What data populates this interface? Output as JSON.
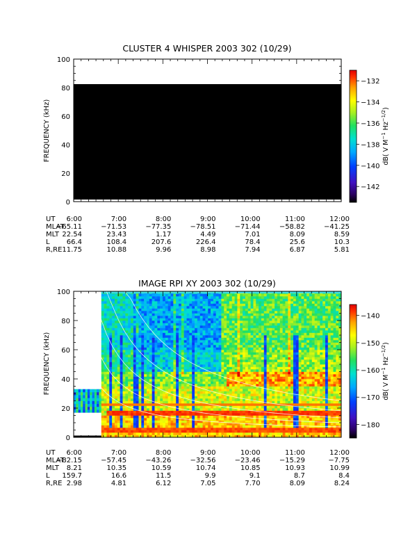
{
  "chart_data": [
    {
      "type": "heatmap",
      "title": "CLUSTER 4 WHISPER 2003 302 (10/29)",
      "ylabel": "FREQUENCY (kHz)",
      "ylim": [
        0,
        100
      ],
      "yticks": [
        0,
        20,
        40,
        60,
        80,
        100
      ],
      "xlim_hours": [
        6,
        12
      ],
      "xticks": [
        "6:00",
        "7:00",
        "8:00",
        "9:00",
        "10:00",
        "11:00",
        "12:00"
      ],
      "data_region": {
        "freq_min": 0,
        "freq_max": 80,
        "fill": "no data (black)"
      },
      "colorbar": {
        "label_main": "dB( V M",
        "label_sup1": "−1",
        "label_mid": " Hz",
        "label_sup2": "−1/2",
        "label_end": ")",
        "range": [
          -143.5,
          -131
        ],
        "ticks": [
          "−132",
          "−134",
          "−136",
          "−138",
          "−140",
          "−142"
        ],
        "tick_values": [
          -132,
          -134,
          -136,
          -138,
          -140,
          -142
        ]
      },
      "ephemeris": [
        {
          "label": "UT",
          "values": [
            "6:00",
            "7:00",
            "8:00",
            "9:00",
            "10:00",
            "11:00",
            "12:00"
          ]
        },
        {
          "label": "MLAT",
          "values": [
            "−65.11",
            "−71.53",
            "−77.35",
            "−78.51",
            "−71.44",
            "−58.82",
            "−41.25"
          ]
        },
        {
          "label": "MLT",
          "values": [
            "22.54",
            "23.43",
            "1.17",
            "4.49",
            "7.01",
            "8.09",
            "8.59"
          ]
        },
        {
          "label": "L",
          "values": [
            "66.4",
            "108.4",
            "207.6",
            "226.4",
            "78.4",
            "25.6",
            "10.3"
          ]
        },
        {
          "label": "R,RE",
          "values": [
            "11.75",
            "10.88",
            "9.96",
            "8.98",
            "7.94",
            "6.87",
            "5.81"
          ]
        }
      ]
    },
    {
      "type": "heatmap",
      "title": "IMAGE RPI XY 2003 302 (10/29)",
      "ylabel": "FREQUENCY (kHz)",
      "ylim": [
        0,
        100
      ],
      "yticks": [
        0,
        20,
        40,
        60,
        80,
        100
      ],
      "xlim_hours": [
        6,
        12
      ],
      "xticks": [
        "6:00",
        "7:00",
        "8:00",
        "9:00",
        "10:00",
        "11:00",
        "12:00"
      ],
      "data_start_hour": 6.62,
      "early_band": {
        "hour_start": 6.0,
        "hour_end": 6.62,
        "freq_min": 17,
        "freq_max": 33
      },
      "colorbar": {
        "label_main": "dB( V M",
        "label_sup1": "−1",
        "label_mid": " Hz",
        "label_sup2": "−1/2",
        "label_end": ")",
        "range": [
          -185,
          -136
        ],
        "ticks": [
          "−140",
          "−150",
          "−160",
          "−170",
          "−180"
        ],
        "tick_values": [
          -140,
          -150,
          -160,
          -170,
          -180
        ]
      },
      "ephemeris": [
        {
          "label": "UT",
          "values": [
            "6:00",
            "7:00",
            "8:00",
            "9:00",
            "10:00",
            "11:00",
            "12:00"
          ]
        },
        {
          "label": "MLAT",
          "values": [
            "−82.15",
            "−57.45",
            "−43.26",
            "−32.56",
            "−23.46",
            "−15.29",
            "−7.75"
          ]
        },
        {
          "label": "MLT",
          "values": [
            "8.21",
            "10.35",
            "10.59",
            "10.74",
            "10.85",
            "10.93",
            "10.99"
          ]
        },
        {
          "label": "L",
          "values": [
            "159.7",
            "16.6",
            "11.5",
            "9.9",
            "9.1",
            "8.7",
            "8.4"
          ]
        },
        {
          "label": "R,RE",
          "values": [
            "2.98",
            "4.81",
            "6.12",
            "7.05",
            "7.70",
            "8.09",
            "8.24"
          ]
        }
      ]
    }
  ]
}
